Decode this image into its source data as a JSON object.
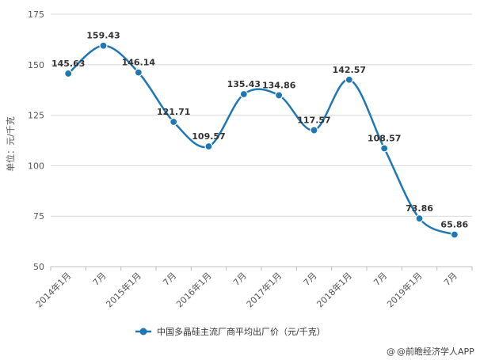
{
  "chart_data": {
    "type": "line",
    "categories": [
      "2014年1月",
      "7月",
      "2015年1月",
      "7月",
      "2016年1月",
      "7月",
      "2017年1月",
      "7月",
      "2018年1月",
      "7月",
      "2019年1月",
      "7月"
    ],
    "series": [
      {
        "name": "中国多晶硅主流厂商平均出厂价（元/千克）",
        "values": [
          145.63,
          159.43,
          146.14,
          121.71,
          109.57,
          135.43,
          134.86,
          117.57,
          142.57,
          108.57,
          73.86,
          65.86
        ],
        "labels": [
          "145.63",
          "159.43",
          "146.14",
          "121.71",
          "109.57",
          "135.43",
          "134.86",
          "117.57",
          "142.57",
          "108.57",
          "73.86",
          "65.86"
        ]
      }
    ],
    "ylabel": "单位：元/千克",
    "ylim": [
      50,
      175
    ],
    "yticks": [
      50,
      75,
      100,
      125,
      150,
      175
    ],
    "ytick_labels": [
      "50",
      "75",
      "100",
      "125",
      "150",
      "175"
    ],
    "grid": true,
    "legend_position": "bottom",
    "line_color": "#1f77b4",
    "smooth": true
  },
  "credit": {
    "text": "@前瞻经济学人APP",
    "icon": "at-sign-icon"
  }
}
